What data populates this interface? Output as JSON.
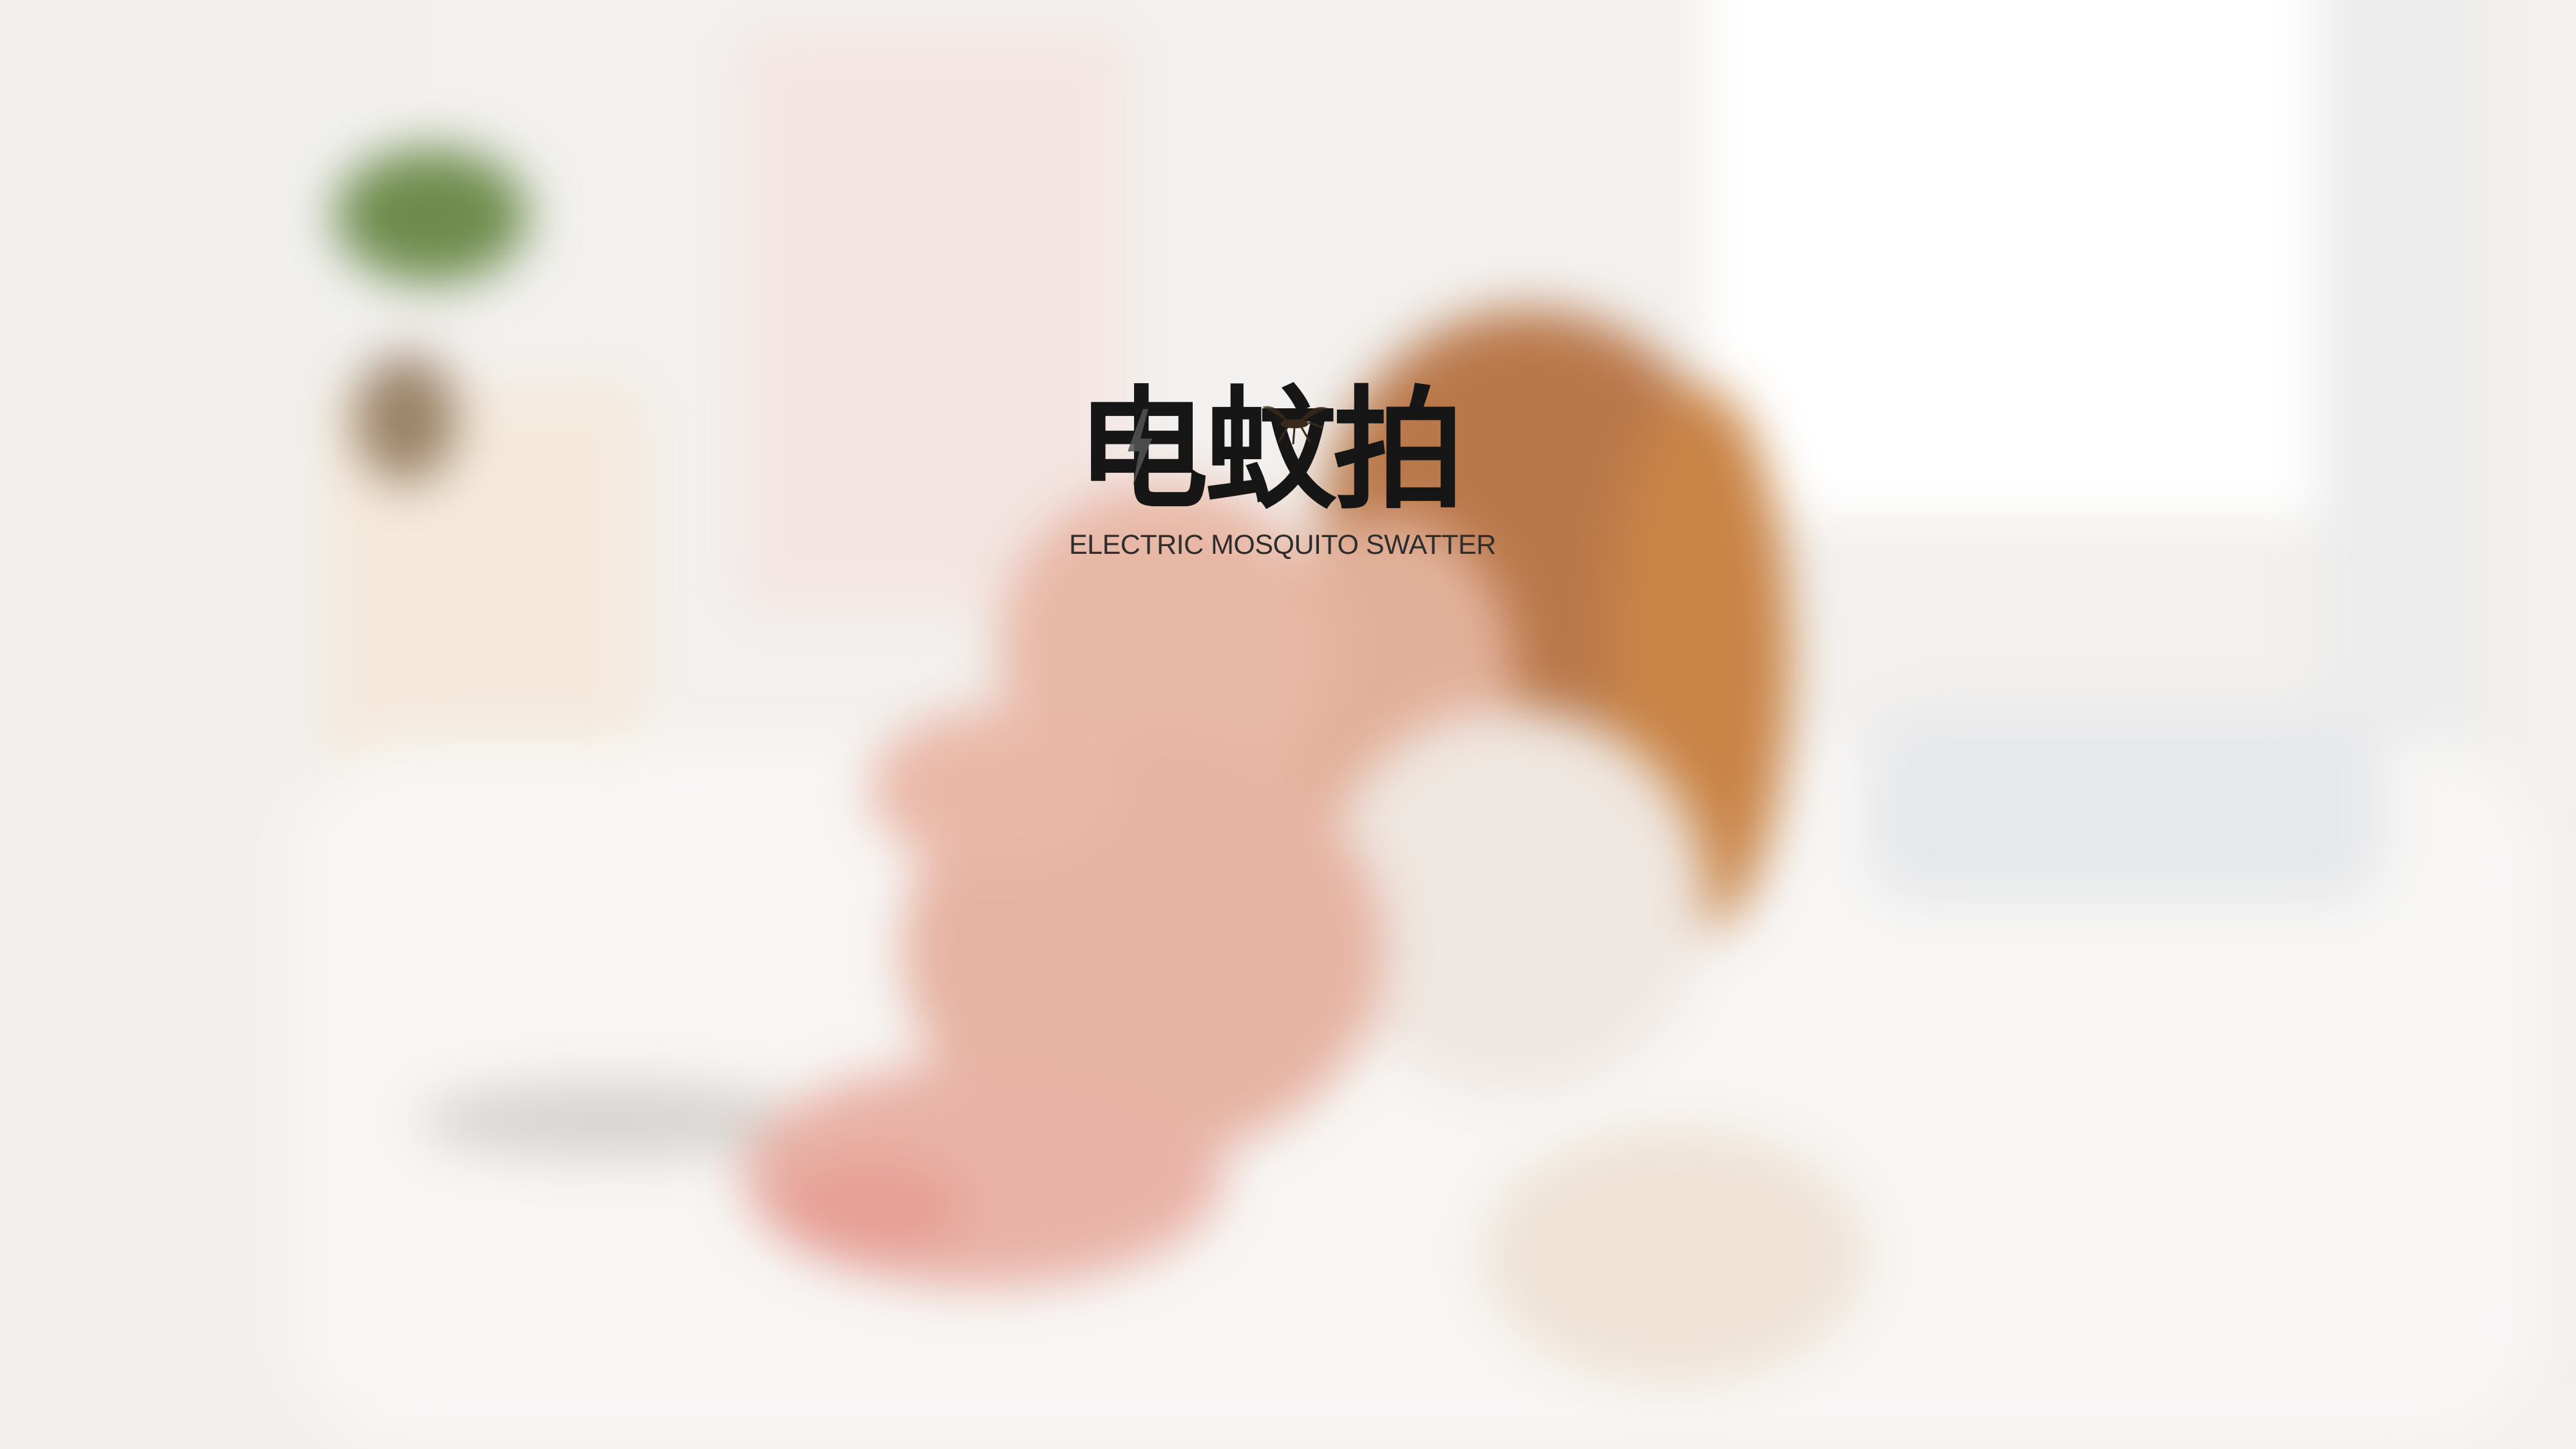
{
  "title": {
    "main_cn": "电蚊拍",
    "subtitle_en": "ELECTRIC MOSQUITO SWATTER"
  },
  "icons": {
    "bolt": "lightning-bolt-icon",
    "mosquito": "mosquito-icon"
  },
  "colors": {
    "background": "#f3f1ef",
    "title_text": "#161616",
    "subtitle_text": "#2e2e2e",
    "bolt": "#555555",
    "mosquito": "#3a2a1c"
  }
}
